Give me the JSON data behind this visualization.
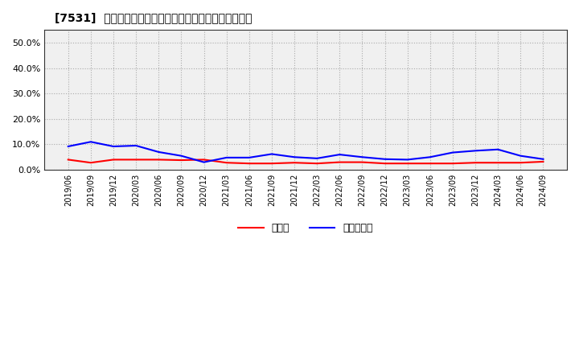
{
  "title": "[7531]  現預金、有利子負債の総資産に対する比率の推移",
  "ylim": [
    0.0,
    0.55
  ],
  "yticks": [
    0.0,
    0.1,
    0.2,
    0.3,
    0.4,
    0.5
  ],
  "legend_labels": [
    "現預金",
    "有利子負債"
  ],
  "line_colors": [
    "#ff0000",
    "#0000ff"
  ],
  "background_color": "#ffffff",
  "plot_bg_color": "#f0f0f0",
  "grid_color": "#aaaaaa",
  "dates": [
    "2019/06",
    "2019/09",
    "2019/12",
    "2020/03",
    "2020/06",
    "2020/09",
    "2020/12",
    "2021/03",
    "2021/06",
    "2021/09",
    "2021/12",
    "2022/03",
    "2022/06",
    "2022/09",
    "2022/12",
    "2023/03",
    "2023/06",
    "2023/09",
    "2023/12",
    "2024/03",
    "2024/06",
    "2024/09"
  ],
  "cash": [
    0.04,
    0.028,
    0.04,
    0.04,
    0.04,
    0.038,
    0.04,
    0.028,
    0.025,
    0.025,
    0.028,
    0.025,
    0.03,
    0.03,
    0.025,
    0.025,
    0.025,
    0.025,
    0.028,
    0.028,
    0.028,
    0.032
  ],
  "interest_bearing_debt": [
    0.092,
    0.11,
    0.092,
    0.095,
    0.07,
    0.055,
    0.03,
    0.048,
    0.048,
    0.062,
    0.05,
    0.045,
    0.06,
    0.05,
    0.042,
    0.04,
    0.05,
    0.068,
    0.075,
    0.08,
    0.055,
    0.042
  ]
}
